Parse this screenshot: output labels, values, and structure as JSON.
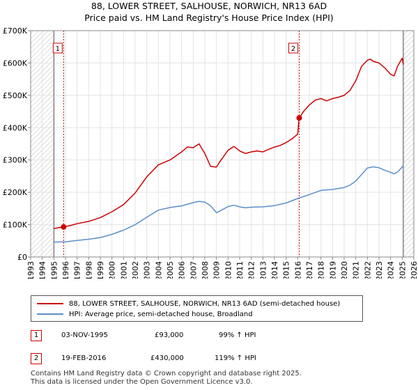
{
  "title_line1": "88, LOWER STREET, SALHOUSE, NORWICH, NR13 6AD",
  "title_line2": "Price paid vs. HM Land Registry's House Price Index (HPI)",
  "chart_data": {
    "type": "line",
    "title": "88, LOWER STREET, SALHOUSE, NORWICH, NR13 6AD — Price paid vs. HM Land Registry's House Price Index (HPI)",
    "xlabel": "",
    "ylabel": "",
    "xlim": [
      1993,
      2026
    ],
    "ylim": [
      0,
      700000
    ],
    "x_ticks": [
      1993,
      1994,
      1995,
      1996,
      1997,
      1998,
      1999,
      2000,
      2001,
      2002,
      2003,
      2004,
      2005,
      2006,
      2007,
      2008,
      2009,
      2010,
      2011,
      2012,
      2013,
      2014,
      2015,
      2016,
      2017,
      2018,
      2019,
      2020,
      2021,
      2022,
      2023,
      2024,
      2025,
      2026
    ],
    "y_ticks": [
      {
        "value": 0,
        "label": "£0"
      },
      {
        "value": 100000,
        "label": "£100K"
      },
      {
        "value": 200000,
        "label": "£200K"
      },
      {
        "value": 300000,
        "label": "£300K"
      },
      {
        "value": 400000,
        "label": "£400K"
      },
      {
        "value": 500000,
        "label": "£500K"
      },
      {
        "value": 600000,
        "label": "£600K"
      },
      {
        "value": 700000,
        "label": "£700K"
      }
    ],
    "hatched_ranges": [
      [
        1993,
        1995.0
      ],
      [
        2025.1,
        2026
      ]
    ],
    "series": [
      {
        "name": "88, LOWER STREET, SALHOUSE, NORWICH, NR13 6AD (semi-detached house)",
        "color": "#cc0000",
        "x": [
          1995.0,
          1995.84,
          1996.5,
          1997,
          1998,
          1999,
          2000,
          2001,
          2002,
          2003,
          2004,
          2005,
          2006,
          2006.5,
          2007,
          2007.5,
          2008,
          2008.5,
          2009,
          2009.3,
          2009.6,
          2010,
          2010.5,
          2011,
          2011.5,
          2012,
          2012.5,
          2013,
          2013.5,
          2014,
          2014.5,
          2015,
          2015.5,
          2016.0,
          2016.13,
          2016.5,
          2017,
          2017.5,
          2018,
          2018.5,
          2019,
          2019.5,
          2020,
          2020.5,
          2021,
          2021.5,
          2022,
          2022.25,
          2022.5,
          2023,
          2023.5,
          2024,
          2024.3,
          2024.6,
          2025,
          2025.1
        ],
        "y": [
          88000,
          93000,
          98000,
          103000,
          110000,
          122000,
          140000,
          162000,
          198000,
          248000,
          285000,
          300000,
          325000,
          340000,
          338000,
          350000,
          320000,
          280000,
          278000,
          295000,
          310000,
          330000,
          342000,
          328000,
          320000,
          325000,
          328000,
          325000,
          333000,
          340000,
          345000,
          354000,
          365000,
          380000,
          430000,
          450000,
          470000,
          485000,
          490000,
          483000,
          490000,
          494000,
          500000,
          515000,
          545000,
          590000,
          608000,
          612000,
          605000,
          600000,
          585000,
          565000,
          560000,
          590000,
          615000,
          595000
        ]
      },
      {
        "name": "HPI: Average price, semi-detached house, Broadland",
        "color": "#5b8ecb",
        "x": [
          1995.0,
          1996,
          1997,
          1998,
          1999,
          2000,
          2001,
          2002,
          2003,
          2004,
          2005,
          2006,
          2007,
          2007.5,
          2008,
          2008.5,
          2009,
          2009.5,
          2010,
          2010.5,
          2011,
          2011.5,
          2012,
          2013,
          2014,
          2015,
          2016,
          2017,
          2018,
          2019,
          2020,
          2020.5,
          2021,
          2021.5,
          2022,
          2022.5,
          2023,
          2023.5,
          2024,
          2024.3,
          2024.6,
          2025,
          2025.1
        ],
        "y": [
          46000,
          47000,
          51000,
          55000,
          60000,
          70000,
          83000,
          100000,
          123000,
          145000,
          153000,
          158000,
          168000,
          172000,
          170000,
          158000,
          137000,
          146000,
          156000,
          160000,
          155000,
          152000,
          154000,
          155000,
          159000,
          167000,
          181000,
          193000,
          206000,
          209000,
          215000,
          222000,
          235000,
          255000,
          275000,
          279000,
          276000,
          268000,
          262000,
          257000,
          263000,
          278000,
          283000
        ]
      }
    ],
    "annotations": [
      {
        "label": "1",
        "x": 1995.84,
        "y": 93000
      },
      {
        "label": "2",
        "x": 2016.13,
        "y": 430000
      }
    ]
  },
  "legend": {
    "items": [
      {
        "label": "88, LOWER STREET, SALHOUSE, NORWICH, NR13 6AD (semi-detached house)",
        "color": "#cc0000"
      },
      {
        "label": "HPI: Average price, semi-detached house, Broadland",
        "color": "#5b8ecb"
      }
    ]
  },
  "transactions": [
    {
      "num": "1",
      "date": "03-NOV-1995",
      "price": "£93,000",
      "hpi": "99% ↑ HPI"
    },
    {
      "num": "2",
      "date": "19-FEB-2016",
      "price": "£430,000",
      "hpi": "119% ↑ HPI"
    }
  ],
  "footer": {
    "line1": "Contains HM Land Registry data © Crown copyright and database right 2025.",
    "line2": "This data is licensed under the Open Government Licence v3.0."
  }
}
